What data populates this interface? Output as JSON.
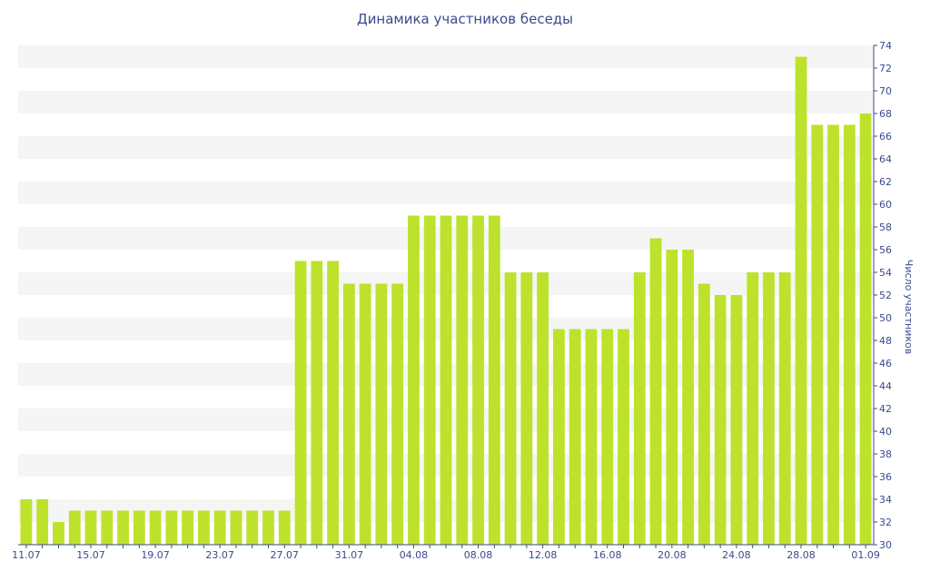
{
  "chart_data": {
    "type": "bar",
    "title": "Динамика участников беседы",
    "ylabel": "Число участников",
    "xlabel": "",
    "ylim": [
      30,
      74
    ],
    "ytick_step": 2,
    "grid": "horizontal alternating bands",
    "y_axis_side": "right",
    "colors": {
      "bar": "#bde22b",
      "band": "#f5f5f5",
      "axis": "#3b4a8c",
      "text": "#3b4a8c"
    },
    "x_tick_labels": [
      "11.07",
      "15.07",
      "19.07",
      "23.07",
      "27.07",
      "31.07",
      "04.08",
      "08.08",
      "12.08",
      "16.08",
      "20.08",
      "24.08",
      "28.08",
      "01.09"
    ],
    "categories": [
      "11.07",
      "12.07",
      "13.07",
      "14.07",
      "15.07",
      "16.07",
      "17.07",
      "18.07",
      "19.07",
      "20.07",
      "21.07",
      "22.07",
      "23.07",
      "24.07",
      "25.07",
      "26.07",
      "27.07",
      "28.07",
      "29.07",
      "30.07",
      "31.07",
      "01.08",
      "02.08",
      "03.08",
      "04.08",
      "05.08",
      "06.08",
      "07.08",
      "08.08",
      "09.08",
      "10.08",
      "11.08",
      "12.08",
      "13.08",
      "14.08",
      "15.08",
      "16.08",
      "17.08",
      "18.08",
      "19.08",
      "20.08",
      "21.08",
      "22.08",
      "23.08",
      "24.08",
      "25.08",
      "26.08",
      "27.08",
      "28.08",
      "29.08",
      "30.08",
      "31.08",
      "01.09"
    ],
    "values": [
      34,
      34,
      32,
      33,
      33,
      33,
      33,
      33,
      33,
      33,
      33,
      33,
      33,
      33,
      33,
      33,
      33,
      55,
      55,
      55,
      53,
      53,
      53,
      53,
      59,
      59,
      59,
      59,
      59,
      59,
      54,
      54,
      54,
      49,
      49,
      49,
      49,
      49,
      54,
      57,
      56,
      56,
      53,
      52,
      52,
      54,
      54,
      54,
      73,
      67,
      67,
      67,
      68
    ]
  }
}
